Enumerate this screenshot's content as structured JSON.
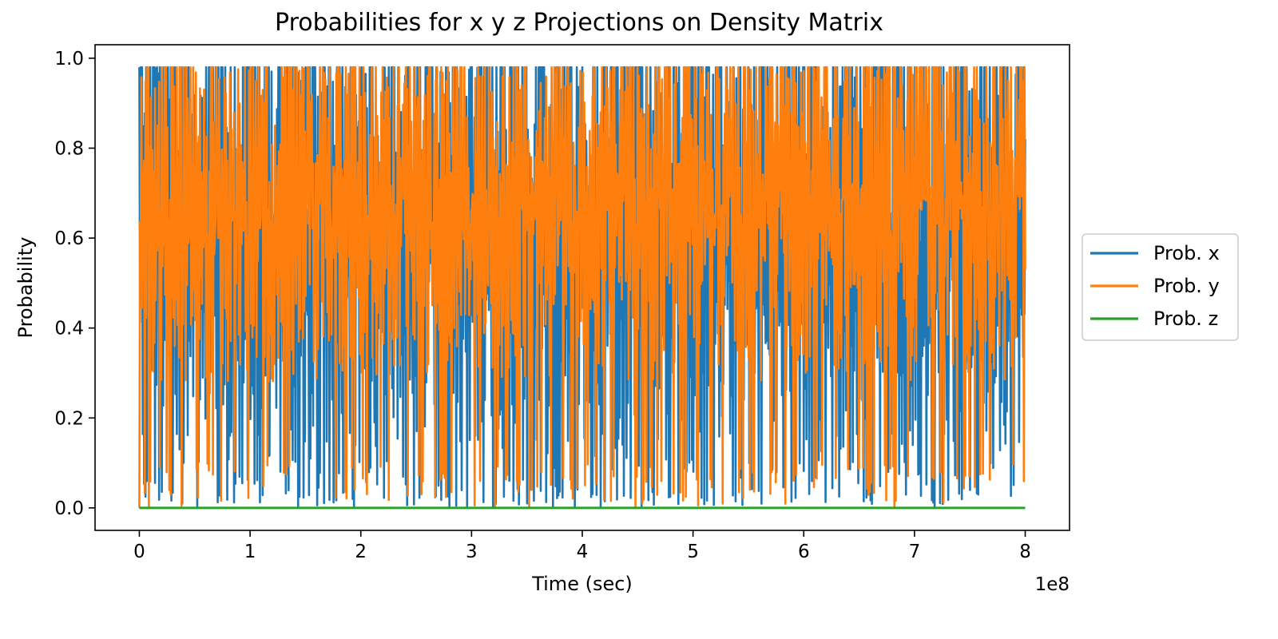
{
  "chart_data": {
    "type": "line",
    "title": "Probabilities for x y z Projections on Density Matrix",
    "xlabel": "Time (sec)",
    "ylabel": "Probability",
    "x_offset_label": "1e8",
    "xlim": [
      -0.4,
      8.4
    ],
    "ylim": [
      -0.05,
      1.03
    ],
    "x_ticks": [
      0,
      1,
      2,
      3,
      4,
      5,
      6,
      7,
      8
    ],
    "x_tick_labels": [
      "0",
      "1",
      "2",
      "3",
      "4",
      "5",
      "6",
      "7",
      "8"
    ],
    "y_ticks": [
      0.0,
      0.2,
      0.4,
      0.6,
      0.8,
      1.0
    ],
    "y_tick_labels": [
      "0.0",
      "0.2",
      "0.4",
      "0.6",
      "0.8",
      "1.0"
    ],
    "legend_position": "center-right outside",
    "x_range": [
      0,
      8
    ],
    "series": [
      {
        "name": "Prob. x",
        "color": "#1f77b4",
        "description": "rapid oscillation spanning roughly 0.0 to 0.98 over the full time range",
        "min": 0.0,
        "max": 0.98,
        "start_value": 0.98,
        "end_value": 0.82
      },
      {
        "name": "Prob. y",
        "color": "#ff7f0e",
        "description": "rapid oscillation mostly between about 0.3 and 0.98, with dips toward 0.0",
        "min": 0.0,
        "max": 0.98,
        "start_value": 0.0,
        "end_value": 0.53
      },
      {
        "name": "Prob. z",
        "color": "#2ca02c",
        "description": "constant at 0.0",
        "min": 0.0,
        "max": 0.0,
        "start_value": 0.0,
        "end_value": 0.0
      }
    ]
  }
}
